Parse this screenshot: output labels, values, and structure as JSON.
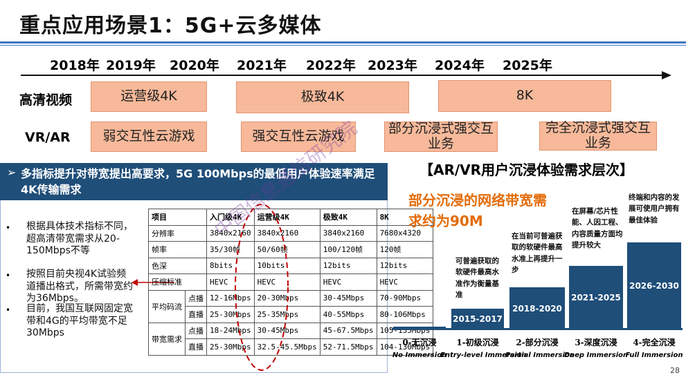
{
  "title": "重点应用场景1：5G+云多媒体",
  "timeline": {
    "years": [
      "2018年",
      "2019年",
      "2020年",
      "2021年",
      "2022年",
      "2023年",
      "2024年",
      "2025年"
    ]
  },
  "rows": [
    {
      "label": "高清视频",
      "boxes": [
        "运营级4K",
        "极致4K",
        "8K"
      ]
    },
    {
      "label": "VR/AR",
      "boxes": [
        "弱交互性云游戏",
        "强交互性云游戏",
        "部分沉浸式强交互业务",
        "完全沉浸式强交互业务"
      ]
    }
  ],
  "banner": {
    "arrow": "➢",
    "text": "多指标提升对带宽提出高要求，5G 100Mbps的最低用户体验速率满足4K传输需求"
  },
  "bullets": [
    "根据具体技术指标不同，超高清带宽需求从20-150Mbps不等",
    "按照目前央视4K试验频道播出格式，所需带宽约为36Mbps。",
    "目前，我国互联网固定宽带和4G的平均带宽不足30Mbps"
  ],
  "table": {
    "header": [
      "项目",
      "入门级4K",
      "运营级4K",
      "极致4K",
      "8K"
    ],
    "rows": [
      {
        "group": "",
        "label": "分辨率",
        "cells": [
          "3840x2160",
          "3840x2160",
          "3840x2160",
          "7680x4320"
        ]
      },
      {
        "group": "",
        "label": "帧率",
        "cells": [
          "35/30帧",
          "50/60帧",
          "100/120帧",
          "120帧"
        ]
      },
      {
        "group": "",
        "label": "色深",
        "cells": [
          "8bits",
          "10bits",
          "12bits",
          "12bits"
        ]
      },
      {
        "group": "",
        "label": "压缩标准",
        "cells": [
          "HEVC",
          "HEVC",
          "HEVC",
          "HEVC"
        ]
      }
    ],
    "groups": [
      {
        "name": "平均码流",
        "rows": [
          {
            "label": "点播",
            "cells": [
              "12-16Mbps",
              "20-30Mbps",
              "30-45Mbps",
              "70-90Mbps"
            ]
          },
          {
            "label": "直播",
            "cells": [
              "25-30Mbps",
              "25-35Mbps",
              "40-55Mbps",
              "80-106Mbps"
            ]
          }
        ]
      },
      {
        "name": "带宽需求",
        "rows": [
          {
            "label": "点播",
            "cells": [
              "18-24Mbps",
              "30-45Mbps",
              "45-67.5Mbps",
              "105-135Mbps"
            ]
          },
          {
            "label": "直播",
            "cells": [
              "25-30Mbps",
              "32.5-45.5Mbps",
              "52-71.5Mbps",
              "104-130Mbps"
            ]
          }
        ]
      }
    ]
  },
  "right": {
    "title": "【AR/VR用户沉浸体验需求层次】",
    "orange": "部分沉浸的网络带宽需求约为90M",
    "stairs": [
      {
        "years": "",
        "desc": "",
        "cn": "0-无沉浸",
        "en": "No Immersion",
        "level": 0.04
      },
      {
        "years": "2015-2017",
        "desc": "可普遍获取的软硬件最高水准作为衡量基准",
        "cn": "1-初级沉浸",
        "en": "Entry-level Immersion",
        "level": 0.28
      },
      {
        "years": "2018-2020",
        "desc": "在当前可普遍获取的软硬件最高水准上再提升一步",
        "cn": "2-部分沉浸",
        "en": "Partial Immersion",
        "level": 0.5
      },
      {
        "years": "2021-2025",
        "desc": "在屏幕/芯片性能、人因工程、内容质量方面均提升较大",
        "cn": "3-深度沉浸",
        "en": "Deep Immersion",
        "level": 0.72
      },
      {
        "years": "2026-2030",
        "desc": "终端和内容的发展可使用户拥有最佳体验",
        "cn": "4-完全沉浸",
        "en": "Full Immersion",
        "level": 0.95
      }
    ]
  },
  "watermark": "中国信息通信研究院",
  "page_number": "28"
}
